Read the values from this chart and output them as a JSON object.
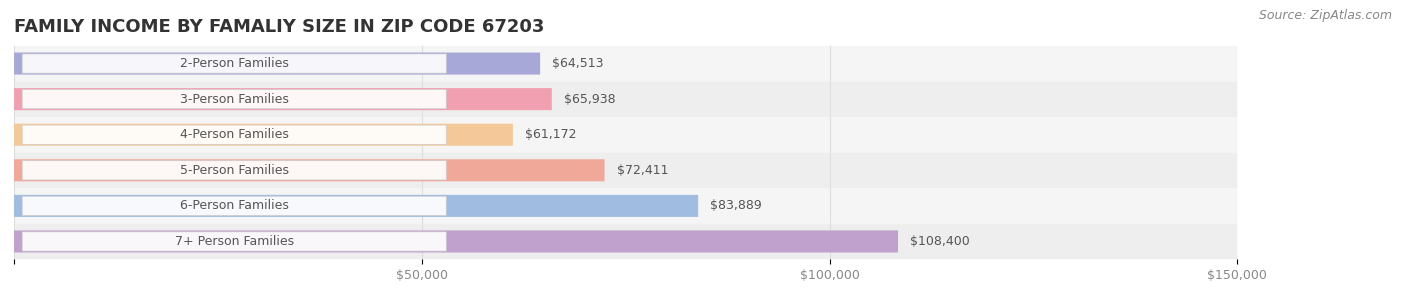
{
  "title": "FAMILY INCOME BY FAMALIY SIZE IN ZIP CODE 67203",
  "source": "Source: ZipAtlas.com",
  "categories": [
    "2-Person Families",
    "3-Person Families",
    "4-Person Families",
    "5-Person Families",
    "6-Person Families",
    "7+ Person Families"
  ],
  "values": [
    64513,
    65938,
    61172,
    72411,
    83889,
    108400
  ],
  "labels": [
    "$64,513",
    "$65,938",
    "$61,172",
    "$72,411",
    "$83,889",
    "$108,400"
  ],
  "bar_colors": [
    "#a8a8d8",
    "#f0a0b0",
    "#f5c89a",
    "#f0a898",
    "#a0bce0",
    "#c0a0cc"
  ],
  "bar_bg_color": "#f0f0f0",
  "row_bg_colors": [
    "#f8f8f8",
    "#f2f2f2"
  ],
  "xlim": [
    0,
    150000
  ],
  "xticks": [
    0,
    50000,
    100000,
    150000
  ],
  "xticklabels": [
    "",
    "$50,000",
    "$100,000",
    "$150,000"
  ],
  "title_fontsize": 13,
  "label_fontsize": 9,
  "source_fontsize": 9,
  "background_color": "#ffffff",
  "grid_color": "#dddddd"
}
